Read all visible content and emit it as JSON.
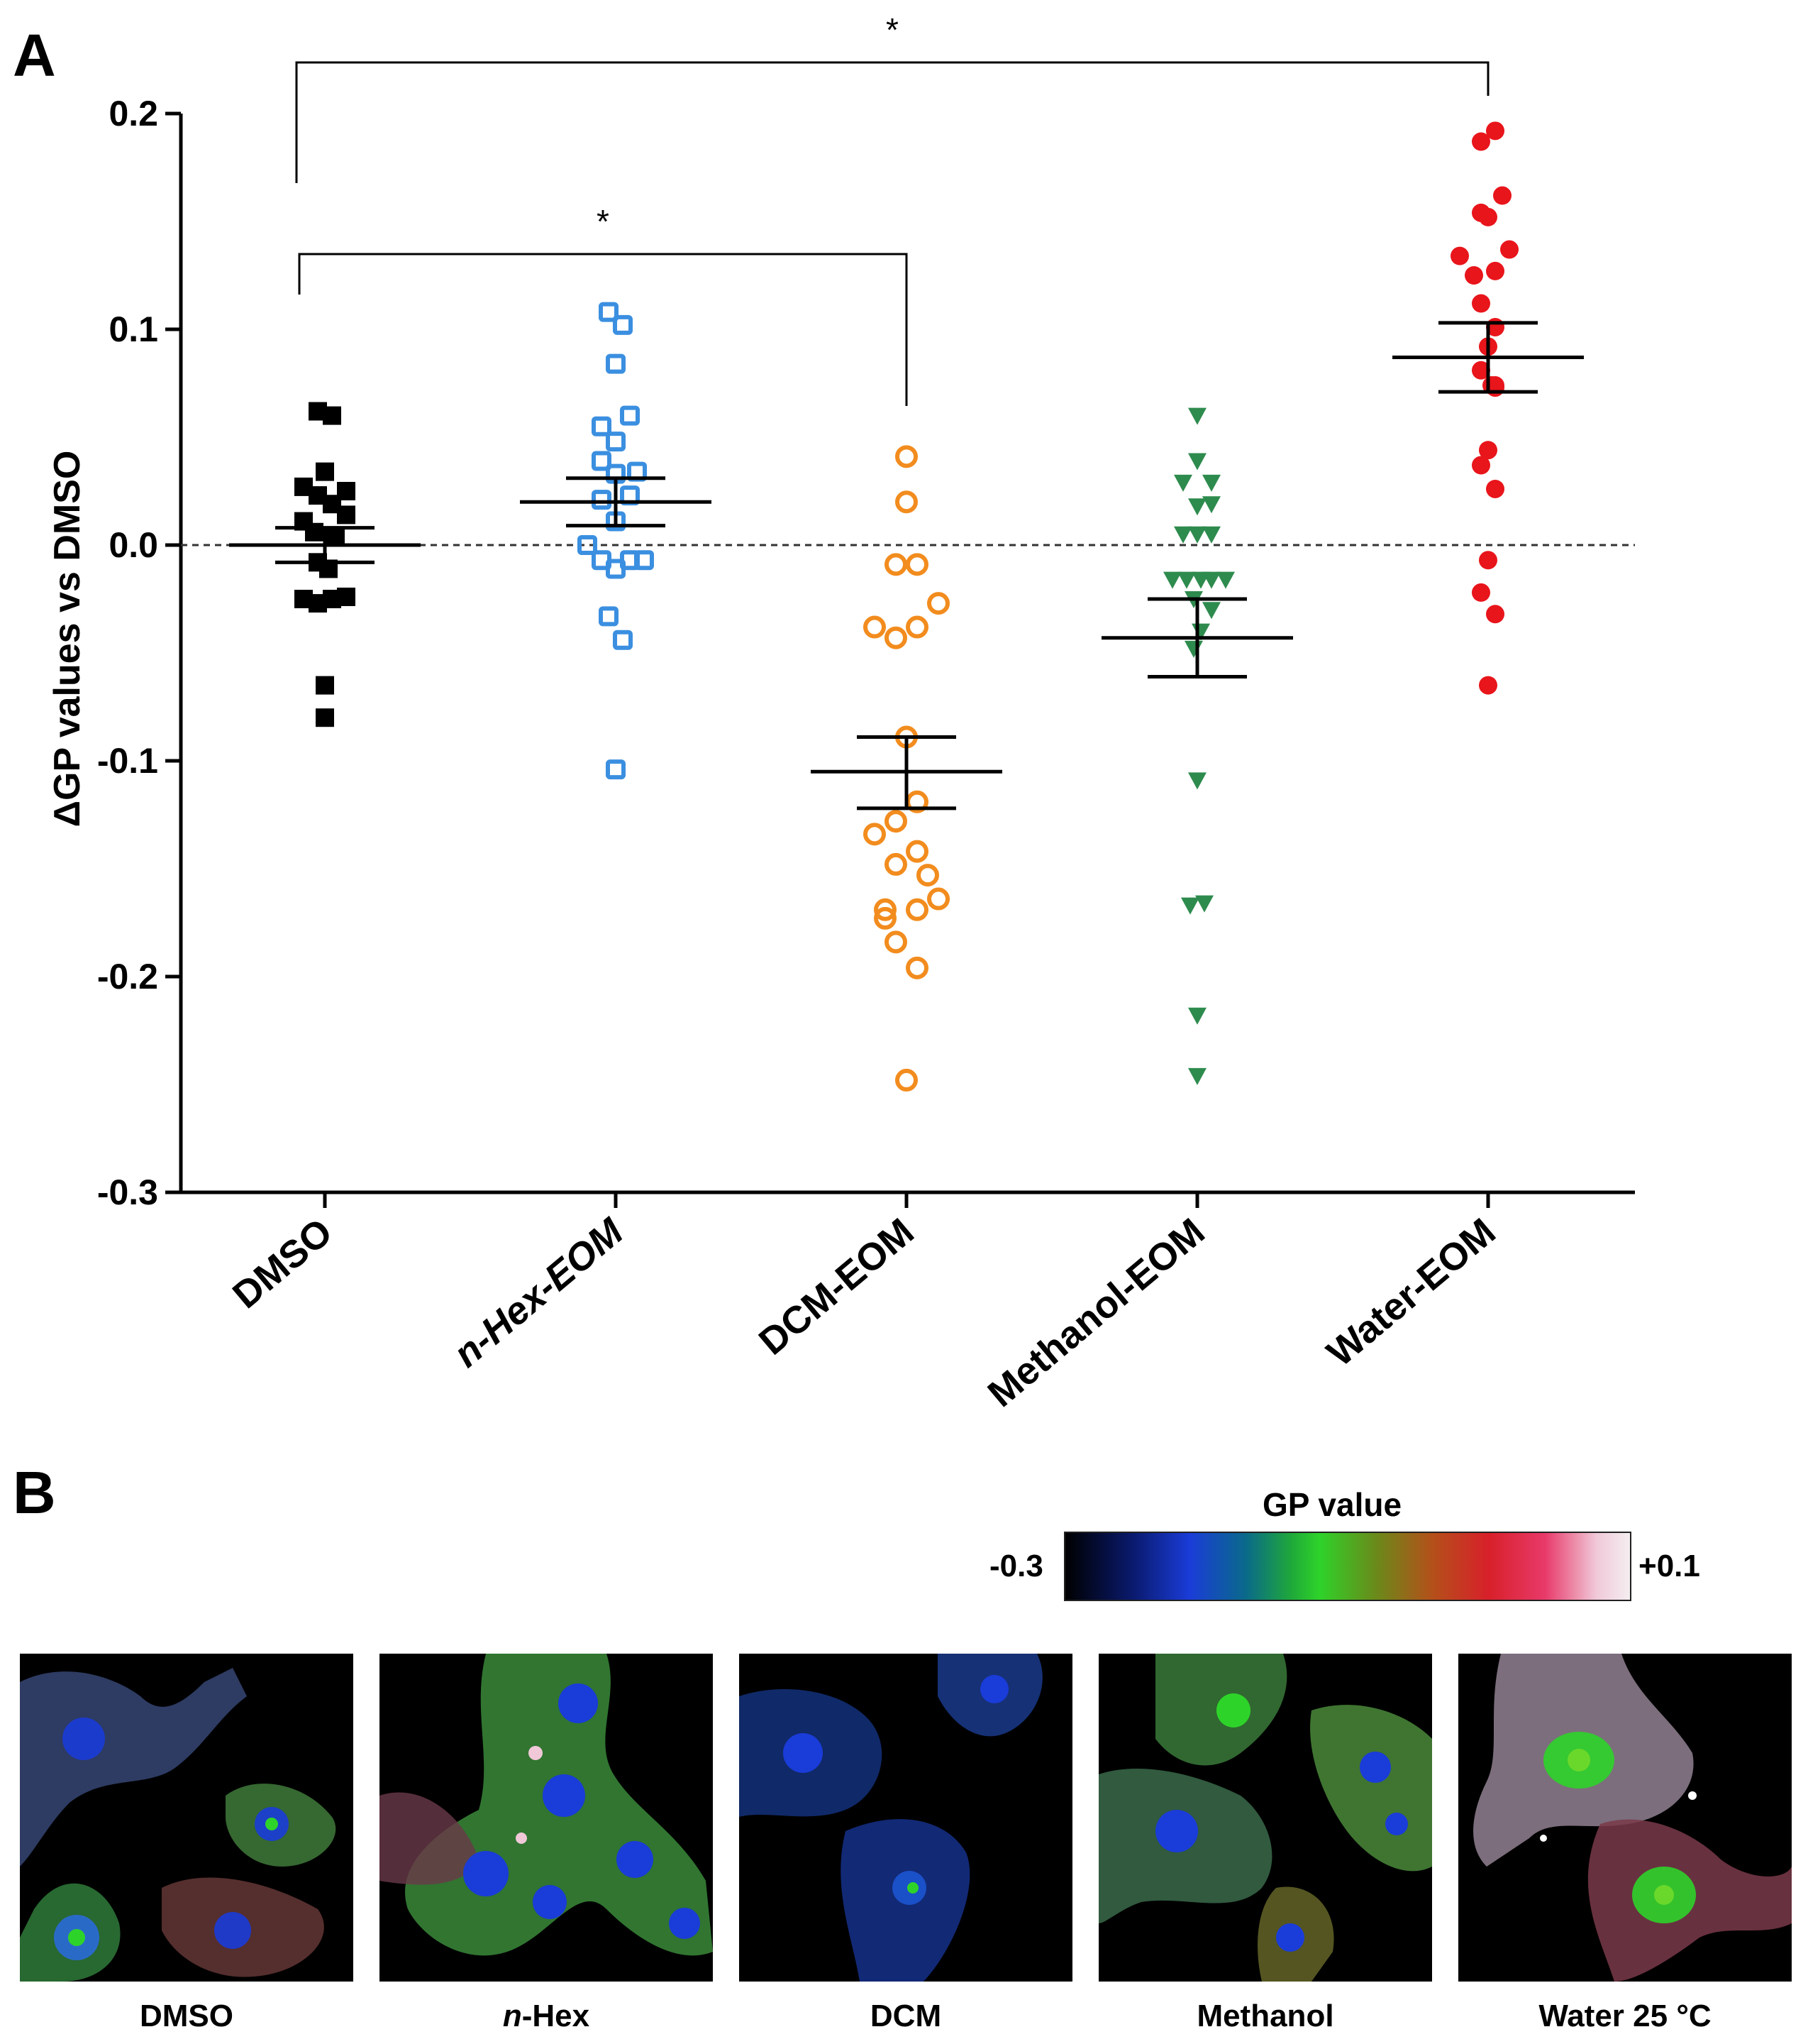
{
  "panel_a_label": "A",
  "panel_b_label": "B",
  "chart_data": {
    "type": "scatter",
    "ylabel": "ΔGP values vs DMSO",
    "xlabel": "",
    "ylim": [
      -0.3,
      0.2
    ],
    "yticks": [
      0.2,
      0.1,
      0.0,
      -0.1,
      -0.2,
      -0.3
    ],
    "ytick_labels": [
      "0.2",
      "0.1",
      "0.0",
      "-0.1",
      "-0.2",
      "-0.3"
    ],
    "reference_line": 0.0,
    "categories": [
      "DMSO",
      "n-Hex-EOM",
      "DCM-EOM",
      "Methanol-EOM",
      "Water-EOM"
    ],
    "series": [
      {
        "name": "DMSO",
        "color": "#000000",
        "marker": "square-filled",
        "mean": 0.0,
        "sem_upper": 0.008,
        "sem_lower": -0.008,
        "points": [
          {
            "dx": -0.1,
            "y": 0.062
          },
          {
            "dx": 0.1,
            "y": 0.06
          },
          {
            "dx": 0.0,
            "y": 0.034
          },
          {
            "dx": -0.3,
            "y": 0.027
          },
          {
            "dx": 0.3,
            "y": 0.025
          },
          {
            "dx": -0.1,
            "y": 0.023
          },
          {
            "dx": 0.1,
            "y": 0.019
          },
          {
            "dx": -0.3,
            "y": 0.011
          },
          {
            "dx": 0.3,
            "y": 0.014
          },
          {
            "dx": -0.15,
            "y": 0.006
          },
          {
            "dx": 0.15,
            "y": 0.004
          },
          {
            "dx": -0.1,
            "y": -0.008
          },
          {
            "dx": 0.05,
            "y": -0.011
          },
          {
            "dx": -0.3,
            "y": -0.025
          },
          {
            "dx": -0.1,
            "y": -0.027
          },
          {
            "dx": 0.1,
            "y": -0.025
          },
          {
            "dx": 0.3,
            "y": -0.024
          },
          {
            "dx": 0.0,
            "y": -0.065
          },
          {
            "dx": 0.0,
            "y": -0.08
          }
        ]
      },
      {
        "name": "n-Hex-EOM",
        "color": "#3b8fe0",
        "marker": "square-open",
        "mean": 0.02,
        "sem_upper": 0.031,
        "sem_lower": 0.009,
        "points": [
          {
            "dx": -0.1,
            "y": 0.108
          },
          {
            "dx": 0.1,
            "y": 0.102
          },
          {
            "dx": 0.0,
            "y": 0.084
          },
          {
            "dx": 0.2,
            "y": 0.06
          },
          {
            "dx": -0.2,
            "y": 0.055
          },
          {
            "dx": 0.0,
            "y": 0.048
          },
          {
            "dx": -0.2,
            "y": 0.039
          },
          {
            "dx": 0.0,
            "y": 0.033
          },
          {
            "dx": 0.3,
            "y": 0.034
          },
          {
            "dx": -0.2,
            "y": 0.021
          },
          {
            "dx": 0.2,
            "y": 0.023
          },
          {
            "dx": 0.0,
            "y": 0.011
          },
          {
            "dx": -0.4,
            "y": 0.0
          },
          {
            "dx": -0.2,
            "y": -0.007
          },
          {
            "dx": 0.0,
            "y": -0.011
          },
          {
            "dx": 0.2,
            "y": -0.007
          },
          {
            "dx": 0.4,
            "y": -0.007
          },
          {
            "dx": -0.1,
            "y": -0.033
          },
          {
            "dx": 0.1,
            "y": -0.044
          },
          {
            "dx": 0.0,
            "y": -0.104
          }
        ]
      },
      {
        "name": "DCM-EOM",
        "color": "#f28c1e",
        "marker": "circle-open",
        "mean": -0.105,
        "sem_upper": -0.089,
        "sem_lower": -0.122,
        "points": [
          {
            "dx": 0.0,
            "y": 0.041
          },
          {
            "dx": 0.0,
            "y": 0.02
          },
          {
            "dx": -0.15,
            "y": -0.009
          },
          {
            "dx": 0.15,
            "y": -0.009
          },
          {
            "dx": 0.45,
            "y": -0.027
          },
          {
            "dx": -0.45,
            "y": -0.038
          },
          {
            "dx": -0.15,
            "y": -0.043
          },
          {
            "dx": 0.15,
            "y": -0.038
          },
          {
            "dx": 0.0,
            "y": -0.089
          },
          {
            "dx": 0.15,
            "y": -0.119
          },
          {
            "dx": -0.15,
            "y": -0.128
          },
          {
            "dx": -0.45,
            "y": -0.134
          },
          {
            "dx": 0.15,
            "y": -0.142
          },
          {
            "dx": -0.15,
            "y": -0.148
          },
          {
            "dx": 0.3,
            "y": -0.153
          },
          {
            "dx": 0.45,
            "y": -0.164
          },
          {
            "dx": 0.15,
            "y": -0.169
          },
          {
            "dx": -0.3,
            "y": -0.169
          },
          {
            "dx": -0.3,
            "y": -0.173
          },
          {
            "dx": -0.15,
            "y": -0.184
          },
          {
            "dx": 0.15,
            "y": -0.196
          },
          {
            "dx": 0.0,
            "y": -0.248
          }
        ]
      },
      {
        "name": "Methanol-EOM",
        "color": "#2e8b4e",
        "marker": "triangle-down",
        "mean": -0.043,
        "sem_upper": -0.025,
        "sem_lower": -0.061,
        "points": [
          {
            "dx": 0.0,
            "y": 0.06
          },
          {
            "dx": 0.0,
            "y": 0.039
          },
          {
            "dx": -0.2,
            "y": 0.029
          },
          {
            "dx": 0.2,
            "y": 0.029
          },
          {
            "dx": 0.0,
            "y": 0.018
          },
          {
            "dx": 0.2,
            "y": 0.019
          },
          {
            "dx": -0.2,
            "y": 0.005
          },
          {
            "dx": 0.0,
            "y": 0.005
          },
          {
            "dx": 0.2,
            "y": 0.005
          },
          {
            "dx": -0.35,
            "y": -0.016
          },
          {
            "dx": -0.15,
            "y": -0.016
          },
          {
            "dx": 0.05,
            "y": -0.016
          },
          {
            "dx": 0.2,
            "y": -0.016
          },
          {
            "dx": 0.4,
            "y": -0.016
          },
          {
            "dx": -0.05,
            "y": -0.025
          },
          {
            "dx": 0.2,
            "y": -0.03
          },
          {
            "dx": -0.05,
            "y": -0.048
          },
          {
            "dx": 0.05,
            "y": -0.04
          },
          {
            "dx": 0.0,
            "y": -0.109
          },
          {
            "dx": -0.1,
            "y": -0.167
          },
          {
            "dx": 0.1,
            "y": -0.166
          },
          {
            "dx": 0.0,
            "y": -0.218
          },
          {
            "dx": 0.0,
            "y": -0.246
          }
        ]
      },
      {
        "name": "Water-EOM",
        "color": "#e8151b",
        "marker": "circle-filled",
        "mean": 0.087,
        "sem_upper": 0.103,
        "sem_lower": 0.071,
        "points": [
          {
            "dx": -0.1,
            "y": 0.187
          },
          {
            "dx": 0.1,
            "y": 0.192
          },
          {
            "dx": 0.2,
            "y": 0.162
          },
          {
            "dx": -0.1,
            "y": 0.154
          },
          {
            "dx": 0.0,
            "y": 0.152
          },
          {
            "dx": 0.3,
            "y": 0.137
          },
          {
            "dx": -0.4,
            "y": 0.134
          },
          {
            "dx": 0.1,
            "y": 0.127
          },
          {
            "dx": -0.2,
            "y": 0.125
          },
          {
            "dx": -0.1,
            "y": 0.112
          },
          {
            "dx": 0.1,
            "y": 0.101
          },
          {
            "dx": 0.0,
            "y": 0.092
          },
          {
            "dx": -0.1,
            "y": 0.081
          },
          {
            "dx": 0.1,
            "y": 0.074
          },
          {
            "dx": 0.05,
            "y": 0.074
          },
          {
            "dx": 0.1,
            "y": 0.073
          },
          {
            "dx": 0.0,
            "y": 0.044
          },
          {
            "dx": -0.1,
            "y": 0.037
          },
          {
            "dx": 0.1,
            "y": 0.026
          },
          {
            "dx": 0.0,
            "y": -0.007
          },
          {
            "dx": -0.1,
            "y": -0.022
          },
          {
            "dx": 0.1,
            "y": -0.032
          },
          {
            "dx": 0.0,
            "y": -0.065
          }
        ]
      }
    ],
    "significance": [
      {
        "from": "DMSO",
        "to": "Water-EOM",
        "label": "*"
      },
      {
        "from": "DMSO",
        "to": "DCM-EOM",
        "label": "*"
      }
    ]
  },
  "colorbar": {
    "title": "GP value",
    "min_label": "-0.3",
    "max_label": "+0.1"
  },
  "micrographs": [
    {
      "label": "DMSO"
    },
    {
      "label": "n-Hex",
      "label_italic": "n",
      "label_rest": "-Hex"
    },
    {
      "label": "DCM"
    },
    {
      "label": "Methanol"
    },
    {
      "label": "Water 25 °C"
    }
  ]
}
